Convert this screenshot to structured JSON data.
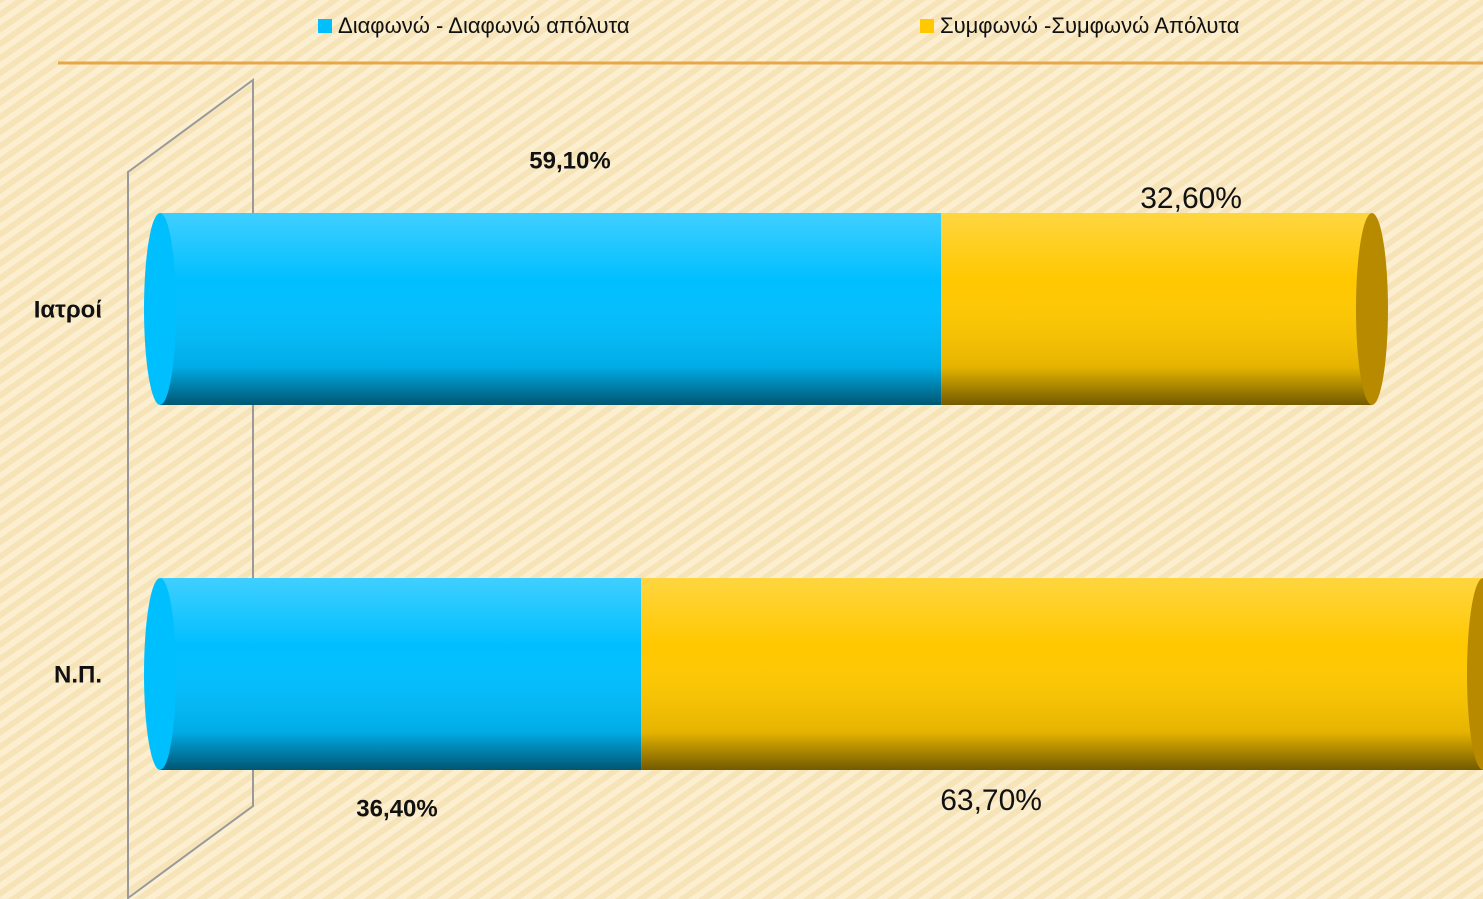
{
  "chart_data": {
    "type": "stacked-bar-horizontal",
    "categories": [
      "Ιατροί",
      "Ν.Π."
    ],
    "series": [
      {
        "name": "Διαφωνώ - Διαφωνώ απόλυτα",
        "color": "#00bfff",
        "values": [
          59.1,
          36.4
        ],
        "value_labels": [
          "59,10%",
          "36,40%"
        ]
      },
      {
        "name": "Συμφωνώ -Συμφωνώ Απόλυτα",
        "color": "#ffc800",
        "values": [
          32.6,
          63.7
        ],
        "value_labels": [
          "32,60%",
          "63,70%"
        ]
      }
    ],
    "legend": "top"
  }
}
